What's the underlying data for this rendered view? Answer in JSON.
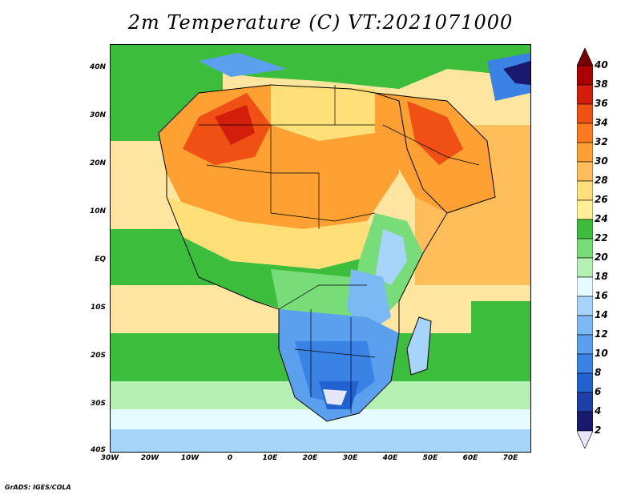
{
  "title": "2m Temperature (C) VT:2021071000",
  "footer": "GrADS: IGES/COLA",
  "map": {
    "lat_ticks": [
      "40N",
      "30N",
      "20N",
      "10N",
      "EQ",
      "10S",
      "20S",
      "30S",
      "40S"
    ],
    "lon_ticks": [
      "30W",
      "20W",
      "10W",
      "0",
      "10E",
      "20E",
      "30E",
      "40E",
      "50E",
      "60E",
      "70E"
    ]
  },
  "colorbar": {
    "levels": [
      "2",
      "4",
      "6",
      "8",
      "10",
      "12",
      "14",
      "16",
      "18",
      "20",
      "22",
      "24",
      "26",
      "28",
      "30",
      "32",
      "34",
      "36",
      "38",
      "40"
    ],
    "colors": [
      "#e6e6fa",
      "#191970",
      "#1c3fa8",
      "#2161d0",
      "#3a82e4",
      "#5aa0ee",
      "#7ab9f4",
      "#a6d4fa",
      "#e6fbff",
      "#b4f0b4",
      "#78dc78",
      "#3cbe3c",
      "#fff096",
      "#ffe078",
      "#ffbe5a",
      "#ffa032",
      "#ff7a1e",
      "#f05014",
      "#d21e0a",
      "#aa0000",
      "#780000"
    ]
  }
}
